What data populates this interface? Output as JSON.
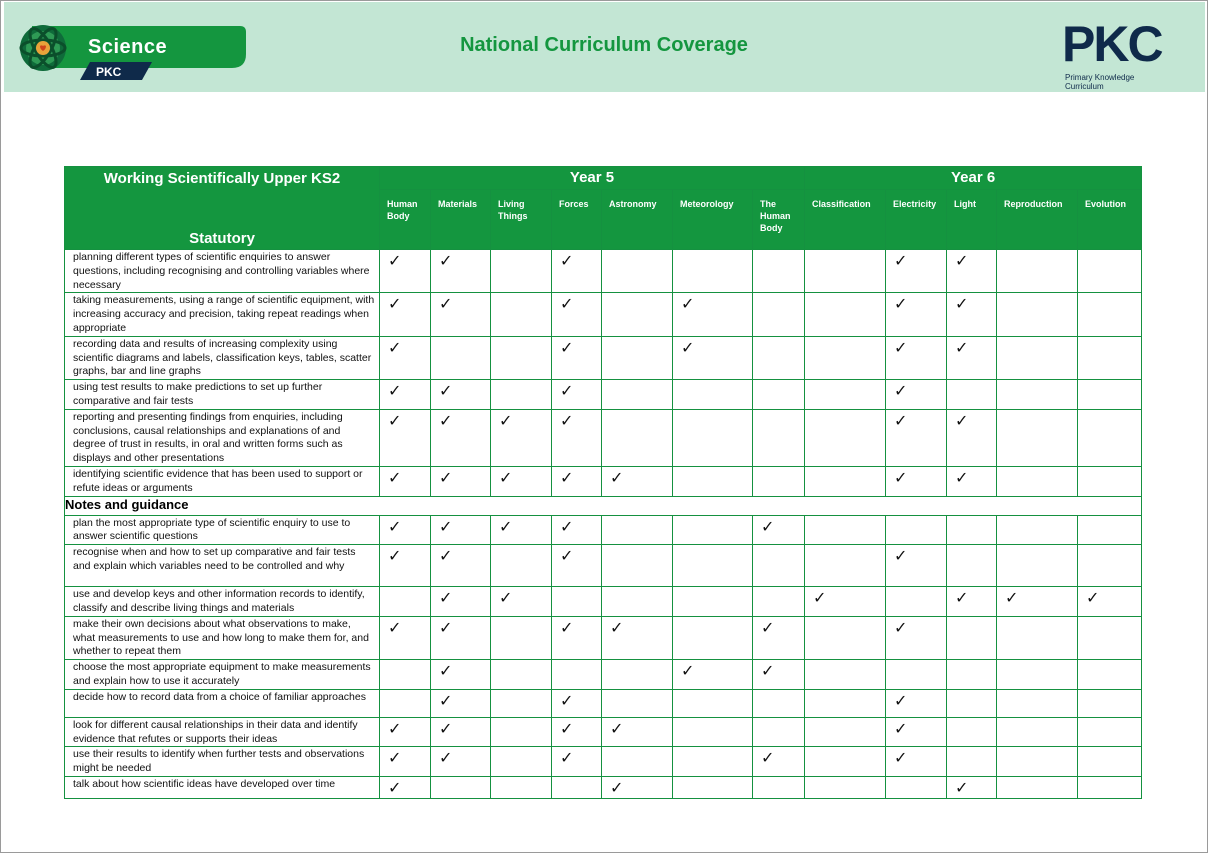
{
  "header": {
    "brand_name": "Science",
    "brand_tag": "PKC",
    "title": "National Curriculum Coverage",
    "logo_text": "PKC",
    "logo_subtitle": "Primary Knowledge Curriculum",
    "colors": {
      "band": "#c3e6d4",
      "green": "#14963f",
      "navy": "#0f2a4a"
    }
  },
  "table": {
    "title": "Working Scientifically Upper KS2",
    "statutory_label": "Statutory",
    "year5_label": "Year 5",
    "year6_label": "Year 6",
    "columns": [
      "Human Body",
      "Materials",
      "Living Things",
      "Forces",
      "Astronomy",
      "Meteorology",
      "The Human Body",
      "Classification",
      "Electricity",
      "Light",
      "Reproduction",
      "Evolution"
    ],
    "check_mark": "✓",
    "notes_label": "Notes and guidance",
    "statutory_rows": [
      {
        "text": "planning different types of scientific enquiries to answer questions, including recognising and controlling variables where necessary",
        "checks": [
          1,
          1,
          0,
          1,
          0,
          0,
          0,
          0,
          1,
          1,
          0,
          0
        ]
      },
      {
        "text": "taking measurements, using a range of scientific equipment, with increasing accuracy and precision, taking repeat readings when appropriate",
        "checks": [
          1,
          1,
          0,
          1,
          0,
          1,
          0,
          0,
          1,
          1,
          0,
          0
        ]
      },
      {
        "text": "recording data and results of increasing complexity using scientific diagrams and labels, classification keys, tables, scatter graphs, bar and line graphs",
        "checks": [
          1,
          0,
          0,
          1,
          0,
          1,
          0,
          0,
          1,
          1,
          0,
          0
        ]
      },
      {
        "text": "using test results to make predictions to set up further comparative and fair tests",
        "checks": [
          1,
          1,
          0,
          1,
          0,
          0,
          0,
          0,
          1,
          0,
          0,
          0
        ]
      },
      {
        "text": "reporting and presenting findings from enquiries, including conclusions, causal relationships and explanations of and degree of trust in results, in oral and written forms such as displays and other presentations",
        "checks": [
          1,
          1,
          1,
          1,
          0,
          0,
          0,
          0,
          1,
          1,
          0,
          0
        ]
      },
      {
        "text": "identifying scientific evidence that has been used to support or refute ideas or arguments",
        "checks": [
          1,
          1,
          1,
          1,
          1,
          0,
          0,
          0,
          1,
          1,
          0,
          0
        ]
      }
    ],
    "notes_rows": [
      {
        "text": "plan the most appropriate type of scientific enquiry to use to answer scientific questions",
        "checks": [
          1,
          1,
          1,
          1,
          0,
          0,
          1,
          0,
          0,
          0,
          0,
          0
        ]
      },
      {
        "text": "recognise when and how to set up comparative and fair tests and explain which variables need to be controlled and why",
        "checks": [
          1,
          1,
          0,
          1,
          0,
          0,
          0,
          0,
          1,
          0,
          0,
          0
        ]
      },
      {
        "text": "use and develop keys and other information records to identify, classify and describe living things and materials",
        "checks": [
          0,
          1,
          1,
          0,
          0,
          0,
          0,
          1,
          0,
          1,
          1,
          1
        ]
      },
      {
        "text": "make their own decisions about what observations to make, what measurements to use and how long to make them for, and whether to repeat them",
        "checks": [
          1,
          1,
          0,
          1,
          1,
          0,
          1,
          0,
          1,
          0,
          0,
          0
        ]
      },
      {
        "text": "choose the most appropriate equipment to make measurements and explain how to use it accurately",
        "checks": [
          0,
          1,
          0,
          0,
          0,
          1,
          1,
          0,
          0,
          0,
          0,
          0
        ]
      },
      {
        "text": "decide how to record data from a choice of familiar approaches",
        "checks": [
          0,
          1,
          0,
          1,
          0,
          0,
          0,
          0,
          1,
          0,
          0,
          0
        ]
      },
      {
        "text": "look for different causal relationships in their data and identify evidence that refutes or supports their ideas",
        "checks": [
          1,
          1,
          0,
          1,
          1,
          0,
          0,
          0,
          1,
          0,
          0,
          0
        ]
      },
      {
        "text": "use their results to identify when further tests and observations might be needed",
        "checks": [
          1,
          1,
          0,
          1,
          0,
          0,
          1,
          0,
          1,
          0,
          0,
          0
        ]
      },
      {
        "text": "talk about how scientific ideas have developed over time",
        "checks": [
          1,
          0,
          0,
          0,
          1,
          0,
          0,
          0,
          0,
          1,
          0,
          0
        ]
      }
    ]
  }
}
